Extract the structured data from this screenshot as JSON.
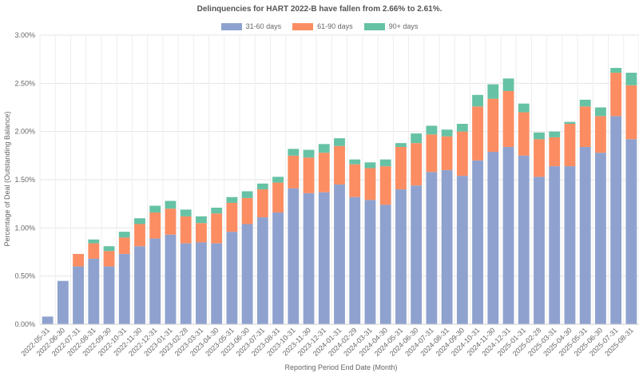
{
  "chart_data": {
    "type": "bar",
    "stacked": true,
    "title": "Delinquencies for HART 2022-B have fallen from 2.66% to 2.61%.",
    "xlabel": "Reporting Period End Date (Month)",
    "ylabel": "Percentage of Deal (Outstanding Balance)",
    "ylim": [
      0,
      3.0
    ],
    "yticks": [
      "0.00%",
      "0.50%",
      "1.00%",
      "1.50%",
      "2.00%",
      "2.50%",
      "3.00%"
    ],
    "ytick_values": [
      0,
      0.5,
      1.0,
      1.5,
      2.0,
      2.5,
      3.0
    ],
    "grid": true,
    "legend_position": "top-center",
    "categories": [
      "2022-05-31",
      "2022-06-30",
      "2022-07-31",
      "2022-08-31",
      "2022-09-30",
      "2022-10-31",
      "2022-11-30",
      "2022-12-31",
      "2023-01-31",
      "2023-02-28",
      "2023-03-31",
      "2023-04-30",
      "2023-05-31",
      "2023-06-30",
      "2023-07-31",
      "2023-08-31",
      "2023-10-31",
      "2023-11-30",
      "2023-12-31",
      "2024-01-31",
      "2024-02-29",
      "2024-03-31",
      "2024-04-30",
      "2024-05-31",
      "2024-06-30",
      "2024-07-31",
      "2024-08-31",
      "2024-09-30",
      "2024-10-31",
      "2024-11-30",
      "2024-12-31",
      "2025-01-31",
      "2025-02-28",
      "2025-03-31",
      "2025-04-30",
      "2025-05-31",
      "2025-06-30",
      "2025-07-31",
      "2025-08-31"
    ],
    "series": [
      {
        "name": "31-60 days",
        "color": "#8fa2cf",
        "values": [
          0.08,
          0.45,
          0.6,
          0.68,
          0.6,
          0.73,
          0.81,
          0.89,
          0.93,
          0.84,
          0.85,
          0.84,
          0.96,
          1.04,
          1.11,
          1.16,
          1.41,
          1.36,
          1.37,
          1.45,
          1.32,
          1.29,
          1.24,
          1.4,
          1.44,
          1.58,
          1.6,
          1.54,
          1.7,
          1.79,
          1.84,
          1.75,
          1.53,
          1.64,
          1.64,
          1.84,
          1.78,
          2.16,
          1.92
        ]
      },
      {
        "name": "61-90 days",
        "color": "#fc8d62",
        "values": [
          0.0,
          0.0,
          0.13,
          0.16,
          0.16,
          0.17,
          0.23,
          0.27,
          0.27,
          0.28,
          0.2,
          0.31,
          0.3,
          0.27,
          0.29,
          0.31,
          0.34,
          0.37,
          0.41,
          0.4,
          0.34,
          0.33,
          0.4,
          0.44,
          0.44,
          0.39,
          0.35,
          0.46,
          0.56,
          0.55,
          0.58,
          0.45,
          0.39,
          0.3,
          0.44,
          0.42,
          0.38,
          0.45,
          0.56
        ]
      },
      {
        "name": "90+ days",
        "color": "#66c2a5",
        "values": [
          0.0,
          0.0,
          0.0,
          0.04,
          0.05,
          0.06,
          0.06,
          0.07,
          0.08,
          0.07,
          0.07,
          0.06,
          0.06,
          0.07,
          0.06,
          0.06,
          0.07,
          0.08,
          0.09,
          0.08,
          0.05,
          0.06,
          0.07,
          0.04,
          0.1,
          0.09,
          0.07,
          0.08,
          0.12,
          0.15,
          0.13,
          0.09,
          0.07,
          0.06,
          0.02,
          0.07,
          0.09,
          0.05,
          0.13
        ]
      }
    ]
  }
}
